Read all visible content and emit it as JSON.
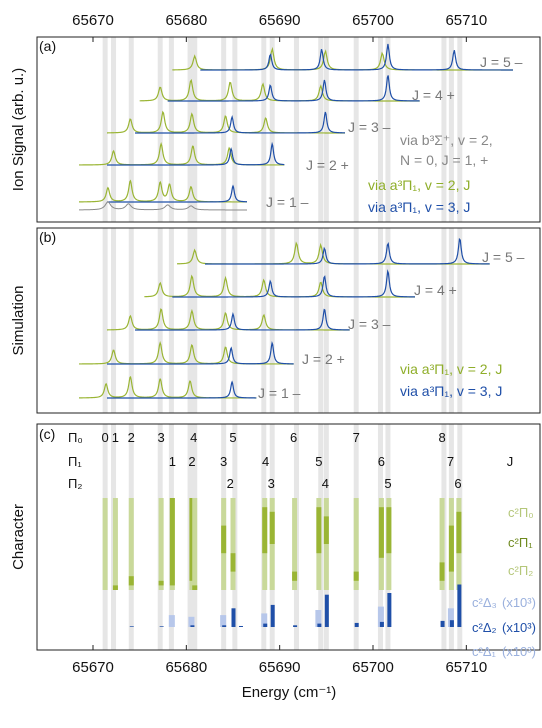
{
  "chart_data": {
    "type": "line",
    "x_axis": {
      "label": "Energy (cm⁻¹)",
      "ticks": [
        65670,
        65680,
        65690,
        65700,
        65710
      ],
      "range": [
        65664,
        65718
      ]
    },
    "colors": {
      "green": "#9ab534",
      "blue": "#1f4fa8",
      "gray": "#8a8a8a",
      "light_green": "#c9d99a",
      "light_blue": "#b7c7ea",
      "grid_band": "#e6e6e6"
    },
    "guide_lines_x": [
      65671.3,
      65672.2,
      65674.1,
      65677.2,
      65678.4,
      65680.4,
      65680.9,
      65684.0,
      65685.2,
      65688.3,
      65689.2,
      65691.8,
      65694.4,
      65695.0,
      65698.2,
      65700.8,
      65701.6,
      65707.6,
      65708.4,
      65709.3
    ],
    "panels": [
      {
        "id": "a",
        "label": "(a)",
        "ylabel": "Ion Signal (arb. u.)",
        "traces": [
          {
            "J": "J = 5 –",
            "x_start": 65678.5,
            "x_end": 65715,
            "green_peaks": [
              65680.9,
              65689.2,
              65694.9,
              65701.0
            ],
            "blue_peaks": [
              65689.0,
              65694.5,
              65701.6,
              65708.7
            ]
          },
          {
            "J": "J = 4 +",
            "x_start": 65675,
            "x_end": 65705,
            "green_peaks": [
              65677.2,
              65680.5,
              65684.7,
              65688.2,
              65694.4
            ],
            "blue_peaks": [
              65689.0,
              65694.8,
              65701.6
            ]
          },
          {
            "J": "J = 3 –",
            "x_start": 65671.5,
            "x_end": 65697,
            "green_peaks": [
              65674.0,
              65677.5,
              65680.6,
              65684.2,
              65688.5
            ],
            "blue_peaks": [
              65684.9,
              65694.9
            ]
          },
          {
            "J": "J = 2 +",
            "x_start": 65668.5,
            "x_end": 65690.5,
            "green_peaks": [
              65672.2,
              65677.3,
              65680.7,
              65684.6
            ],
            "blue_peaks": [
              65684.8,
              65689.2
            ]
          },
          {
            "J": "J = 1 –",
            "x_start": 65668.5,
            "x_end": 65686.5,
            "green_peaks": [
              65671.6,
              65674.0,
              65677.2,
              65678.2,
              65680.5
            ],
            "blue_peaks": [
              65685.0
            ]
          }
        ],
        "legend": [
          {
            "lines": [
              "via b³Σ⁺, v = 2,",
              "N = 0, J = 1, +"
            ],
            "color": "gray"
          },
          {
            "lines": [
              "via a³Π₁, v = 2, J"
            ],
            "color": "green"
          },
          {
            "lines": [
              "via a³Π₁, v = 3, J"
            ],
            "color": "blue"
          }
        ]
      },
      {
        "id": "b",
        "label": "(b)",
        "ylabel": "Simulation",
        "traces": [
          {
            "J": "J = 5 –",
            "x_start": 65679,
            "x_end": 65712.5,
            "green_peaks": [
              65680.9,
              65691.8,
              65694.4
            ],
            "blue_peaks": [
              65694.8,
              65701.6,
              65709.3
            ]
          },
          {
            "J": "J = 4 +",
            "x_start": 65675.5,
            "x_end": 65704.5,
            "green_peaks": [
              65677.2,
              65680.6,
              65684.2,
              65688.3,
              65694.4
            ],
            "blue_peaks": [
              65689.0,
              65694.8,
              65701.6
            ]
          },
          {
            "J": "J = 3 –",
            "x_start": 65671.5,
            "x_end": 65697.5,
            "green_peaks": [
              65674.0,
              65677.3,
              65680.6,
              65684.2,
              65688.3
            ],
            "blue_peaks": [
              65685.0,
              65694.8
            ]
          },
          {
            "J": "J = 2 +",
            "x_start": 65668.5,
            "x_end": 65691.5,
            "green_peaks": [
              65672.2,
              65677.2,
              65680.6,
              65684.2
            ],
            "blue_peaks": [
              65684.8,
              65689.2
            ]
          },
          {
            "J": "J = 1 –",
            "x_start": 65668.5,
            "x_end": 65687.5,
            "green_peaks": [
              65671.4,
              65674.0,
              65677.2,
              65680.4
            ],
            "blue_peaks": [
              65684.9
            ]
          }
        ],
        "legend": [
          {
            "lines": [
              "via a³Π₁, v = 2, J"
            ],
            "color": "green"
          },
          {
            "lines": [
              "via a³Π₁, v = 3, J"
            ],
            "color": "blue"
          }
        ]
      },
      {
        "id": "c",
        "label": "(c)",
        "ylabel": "Character",
        "rows": [
          {
            "name": "Π₀",
            "labels": [
              [
                "0",
                65671.3
              ],
              [
                "1",
                65672.4
              ],
              [
                "2",
                65674.1
              ],
              [
                "3",
                65677.3
              ],
              [
                "4",
                65680.8
              ],
              [
                "5",
                65685.0
              ],
              [
                "6",
                65691.5
              ],
              [
                "7",
                65698.2
              ],
              [
                "8",
                65707.4
              ]
            ]
          },
          {
            "name": "Π₁",
            "labels": [
              [
                "1",
                65678.5
              ],
              [
                "2",
                65680.6
              ],
              [
                "3",
                65684.0
              ],
              [
                "4",
                65688.5
              ],
              [
                "5",
                65694.2
              ],
              [
                "6",
                65700.9
              ],
              [
                "7",
                65708.3
              ]
            ]
          },
          {
            "name": "Π₂",
            "labels": [
              [
                "2",
                65684.7
              ],
              [
                "3",
                65689.1
              ],
              [
                "4",
                65694.9
              ],
              [
                "5",
                65701.6
              ],
              [
                "6",
                65709.1
              ]
            ]
          }
        ],
        "j_label": "J",
        "green_labels": [
          "c²Π₀",
          "c²Π₁",
          "c²Π₂"
        ],
        "blue_labels": [
          "c²Δ₃",
          "c²Δ₂",
          "c²Δ₁"
        ],
        "blue_scale": [
          "(x10³)",
          "(x10³)",
          "(x10³)"
        ],
        "green_bars": [
          {
            "x": 65671.3,
            "pi0": 0.9,
            "pi1": 0.0,
            "pi2": 0.1
          },
          {
            "x": 65672.4,
            "pi0": 0.95,
            "pi1": 0.05,
            "pi2": 0.0
          },
          {
            "x": 65674.1,
            "pi0": 0.85,
            "pi1": 0.1,
            "pi2": 0.05
          },
          {
            "x": 65677.3,
            "pi0": 0.9,
            "pi1": 0.05,
            "pi2": 0.05
          },
          {
            "x": 65678.5,
            "pi0": 0.0,
            "pi1": 0.95,
            "pi2": 0.05
          },
          {
            "x": 65680.6,
            "pi0": 0.0,
            "pi1": 0.9,
            "pi2": 0.1
          },
          {
            "x": 65680.9,
            "pi0": 0.95,
            "pi1": 0.05,
            "pi2": 0.0
          },
          {
            "x": 65684.0,
            "pi0": 0.3,
            "pi1": 0.3,
            "pi2": 0.4
          },
          {
            "x": 65685.0,
            "pi0": 0.6,
            "pi1": 0.2,
            "pi2": 0.2
          },
          {
            "x": 65688.4,
            "pi0": 0.1,
            "pi1": 0.5,
            "pi2": 0.4
          },
          {
            "x": 65689.2,
            "pi0": 0.15,
            "pi1": 0.35,
            "pi2": 0.5
          },
          {
            "x": 65691.6,
            "pi0": 0.8,
            "pi1": 0.1,
            "pi2": 0.1
          },
          {
            "x": 65694.2,
            "pi0": 0.1,
            "pi1": 0.5,
            "pi2": 0.4
          },
          {
            "x": 65695.0,
            "pi0": 0.2,
            "pi1": 0.3,
            "pi2": 0.5
          },
          {
            "x": 65698.2,
            "pi0": 0.8,
            "pi1": 0.1,
            "pi2": 0.1
          },
          {
            "x": 65700.9,
            "pi0": 0.1,
            "pi1": 0.55,
            "pi2": 0.35
          },
          {
            "x": 65701.7,
            "pi0": 0.1,
            "pi1": 0.5,
            "pi2": 0.4
          },
          {
            "x": 65707.4,
            "pi0": 0.7,
            "pi1": 0.2,
            "pi2": 0.1
          },
          {
            "x": 65708.4,
            "pi0": 0.3,
            "pi1": 0.5,
            "pi2": 0.2
          },
          {
            "x": 65709.2,
            "pi0": 0.15,
            "pi1": 0.45,
            "pi2": 0.4
          }
        ],
        "blue_bars": [
          {
            "x": 65674.1,
            "d3": 0.0,
            "d2": 0.02,
            "d1": 0.0
          },
          {
            "x": 65677.3,
            "d3": 0.0,
            "d2": 0.02,
            "d1": 0.0
          },
          {
            "x": 65678.5,
            "d3": 0.0,
            "d2": 0.0,
            "d1": 0.35
          },
          {
            "x": 65680.6,
            "d3": 0.0,
            "d2": 0.05,
            "d1": 0.3
          },
          {
            "x": 65684.0,
            "d3": 0.0,
            "d2": 0.05,
            "d1": 0.35
          },
          {
            "x": 65685.0,
            "d3": 0.0,
            "d2": 0.55,
            "d1": 0.0
          },
          {
            "x": 65685.8,
            "d3": 0.0,
            "d2": 0.03,
            "d1": 0.0
          },
          {
            "x": 65688.4,
            "d3": 0.0,
            "d2": 0.1,
            "d1": 0.4
          },
          {
            "x": 65689.2,
            "d3": 0.0,
            "d2": 0.65,
            "d1": 0.0
          },
          {
            "x": 65691.6,
            "d3": 0.0,
            "d2": 0.05,
            "d1": 0.0
          },
          {
            "x": 65694.2,
            "d3": 0.0,
            "d2": 0.1,
            "d1": 0.5
          },
          {
            "x": 65695.0,
            "d3": 0.05,
            "d2": 0.95,
            "d1": 0.0
          },
          {
            "x": 65698.2,
            "d3": 0.0,
            "d2": 0.12,
            "d1": 0.0
          },
          {
            "x": 65700.9,
            "d3": 0.0,
            "d2": 0.15,
            "d1": 0.6
          },
          {
            "x": 65701.7,
            "d3": 0.05,
            "d2": 1.0,
            "d1": 0.0
          },
          {
            "x": 65707.4,
            "d3": 0.0,
            "d2": 0.18,
            "d1": 0.0
          },
          {
            "x": 65708.4,
            "d3": 0.05,
            "d2": 0.2,
            "d1": 0.55
          },
          {
            "x": 65709.2,
            "d3": 0.1,
            "d2": 1.25,
            "d1": 0.0
          }
        ]
      }
    ]
  }
}
